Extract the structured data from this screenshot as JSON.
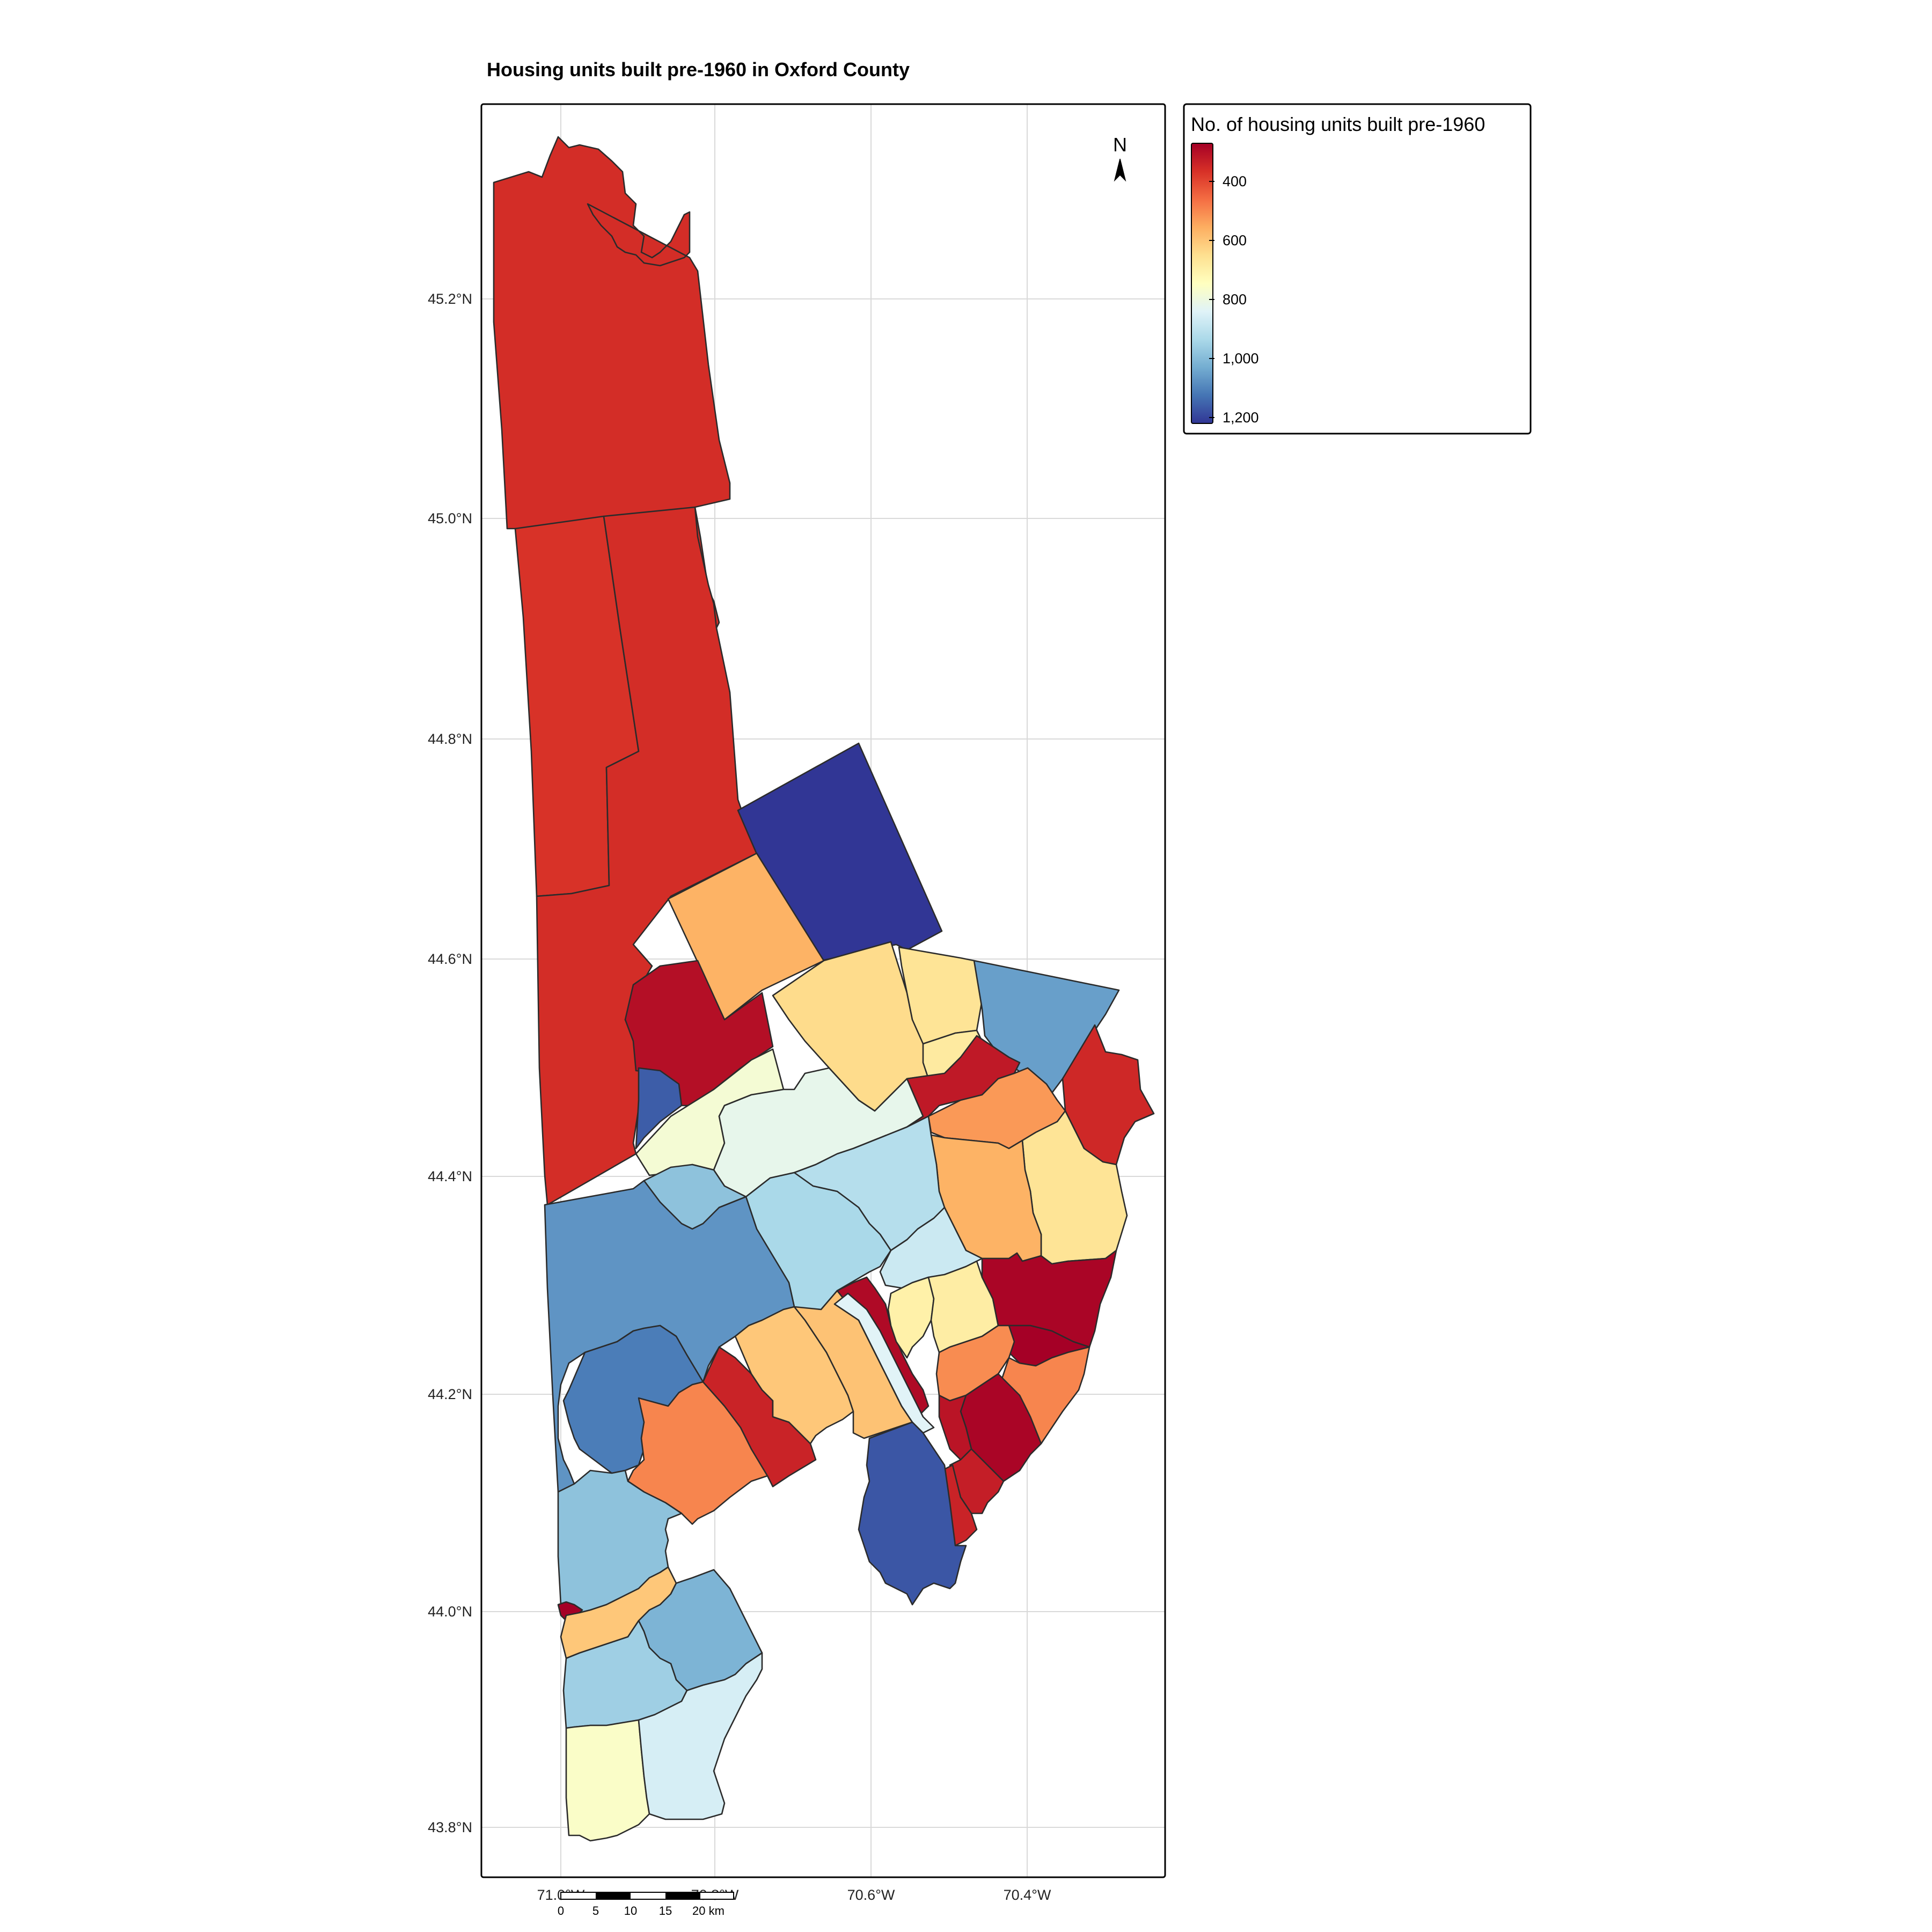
{
  "title": "Housing units built pre-1960 in Oxford County",
  "axes": {
    "lat_ticks": [
      "45.2°N",
      "45.0°N",
      "44.8°N",
      "44.6°N",
      "44.4°N",
      "44.2°N",
      "44.0°N",
      "43.8°N"
    ],
    "lon_ticks": [
      "71.0°W",
      "70.8°W",
      "70.6°W",
      "70.4°W"
    ]
  },
  "north_arrow": {
    "label": "N",
    "icon": "north-arrow-icon"
  },
  "legend": {
    "title": "No. of housing units built pre-1960",
    "ticks": [
      "400",
      "600",
      "800",
      "1,000",
      "1,200"
    ],
    "palette": "RdYlBu",
    "colors": [
      "#a50026",
      "#d73027",
      "#f46d43",
      "#fdae61",
      "#fee090",
      "#ffffbf",
      "#e0f3f8",
      "#abd9e9",
      "#74add1",
      "#4575b4",
      "#313695"
    ]
  },
  "scale_bar": {
    "labels": [
      "0",
      "5",
      "10",
      "15",
      "20 km"
    ]
  },
  "chart_data": {
    "type": "choropleth",
    "title": "Housing units built pre-1960 in Oxford County",
    "variable": "No. of housing units built pre-1960",
    "lat_range": [
      "43.8°N",
      "45.2°N"
    ],
    "lon_range": [
      "71.0°W",
      "70.4°W"
    ],
    "grid": true,
    "legend_position": "right",
    "color_scale": {
      "min_tick": 400,
      "max_tick": 1200,
      "high_color": "#313695",
      "low_color": "#a50026"
    },
    "regions": [
      {
        "id": "far-north",
        "value": 350
      },
      {
        "id": "northwest",
        "value": 360
      },
      {
        "id": "north-central",
        "value": 350
      },
      {
        "id": "northeast-block",
        "value": 1230
      },
      {
        "id": "upper-middle",
        "value": 560
      },
      {
        "id": "upper-left-red",
        "value": 290
      },
      {
        "id": "small-blue",
        "value": 1170
      },
      {
        "id": "yellow-strip",
        "value": 780
      },
      {
        "id": "pale-green",
        "value": 820
      },
      {
        "id": "orange-center",
        "value": 640
      },
      {
        "id": "east-yellow-1",
        "value": 660
      },
      {
        "id": "east-yellow-2",
        "value": 680
      },
      {
        "id": "east-blue",
        "value": 1060
      },
      {
        "id": "east-red-small",
        "value": 310
      },
      {
        "id": "far-east-red",
        "value": 340
      },
      {
        "id": "east-orange",
        "value": 520
      },
      {
        "id": "east-yellow-3",
        "value": 660
      },
      {
        "id": "east-orange-2",
        "value": 560
      },
      {
        "id": "center-lightblue",
        "value": 920
      },
      {
        "id": "center-lightblue-2",
        "value": 940
      },
      {
        "id": "center-lightblue-3",
        "value": 880
      },
      {
        "id": "small-blue-2",
        "value": 990
      },
      {
        "id": "west-big-blue",
        "value": 1080
      },
      {
        "id": "west-blue-2",
        "value": 1120
      },
      {
        "id": "west-orange",
        "value": 490
      },
      {
        "id": "west-red",
        "value": 330
      },
      {
        "id": "center-orange",
        "value": 600
      },
      {
        "id": "center-orange-2",
        "value": 590
      },
      {
        "id": "center-red-strip",
        "value": 280
      },
      {
        "id": "center-green",
        "value": 840
      },
      {
        "id": "center-yellow",
        "value": 700
      },
      {
        "id": "center-yellow-2",
        "value": 690
      },
      {
        "id": "se-darkred",
        "value": 270
      },
      {
        "id": "se-darkred-2",
        "value": 260
      },
      {
        "id": "se-red",
        "value": 300
      },
      {
        "id": "se-orange",
        "value": 500
      },
      {
        "id": "se-orange-2",
        "value": 490
      },
      {
        "id": "se-darkred-3",
        "value": 270
      },
      {
        "id": "se-red-2",
        "value": 320
      },
      {
        "id": "se-red-3",
        "value": 330
      },
      {
        "id": "se-blue",
        "value": 1180
      },
      {
        "id": "sw-lightblue",
        "value": 990
      },
      {
        "id": "sw-orange",
        "value": 600
      },
      {
        "id": "sw-blue",
        "value": 1020
      },
      {
        "id": "sw-lightblue-2",
        "value": 960
      },
      {
        "id": "sw-pale-yellow",
        "value": 760
      },
      {
        "id": "sw-pale-cyan",
        "value": 860
      },
      {
        "id": "sw-tiny-red",
        "value": 260
      }
    ]
  }
}
